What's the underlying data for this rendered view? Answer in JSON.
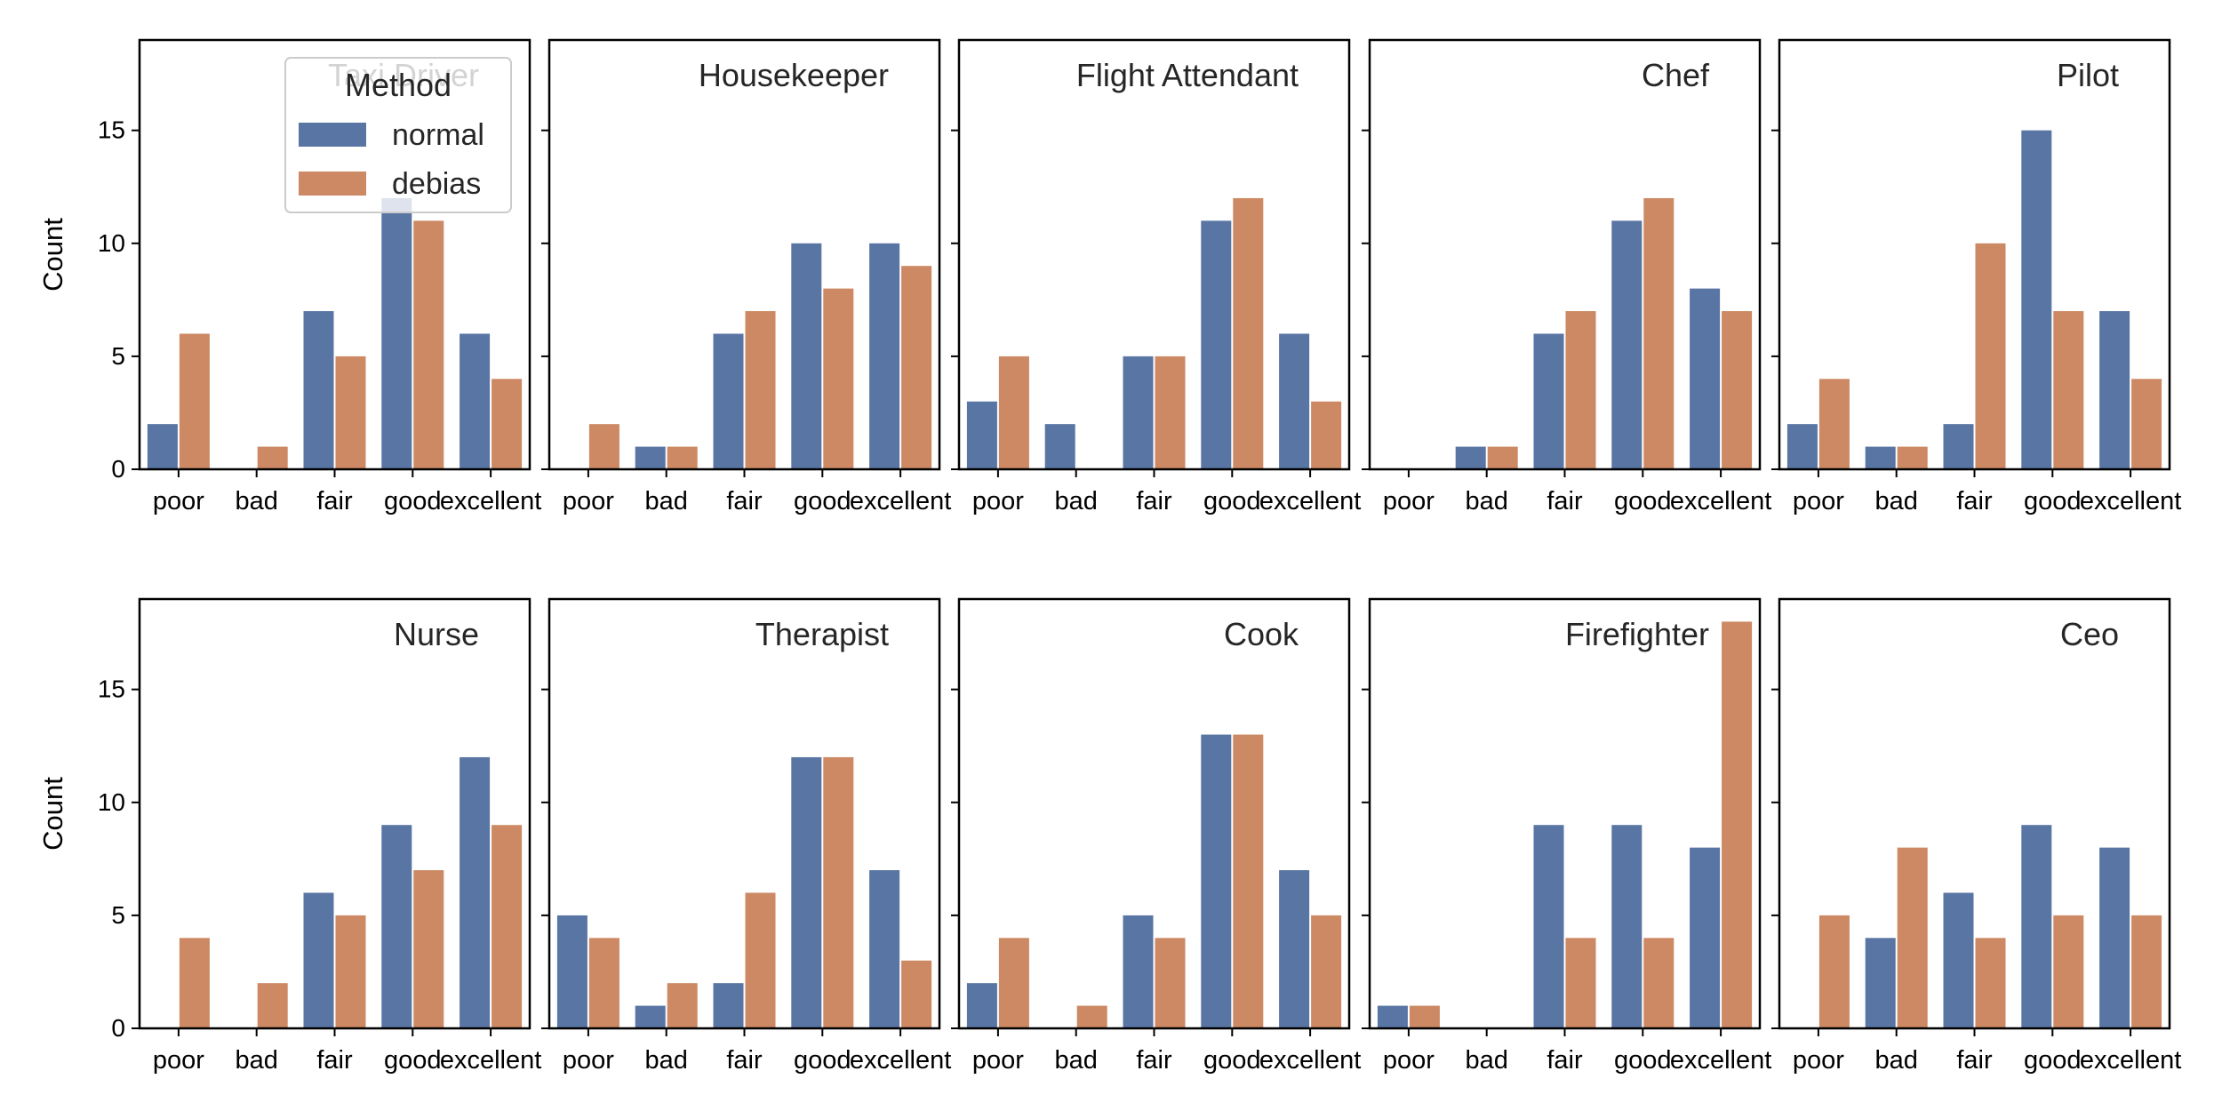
{
  "colors": {
    "normal": "#5975a4",
    "debias": "#cc8963"
  },
  "legend": {
    "title": "Method",
    "items": [
      {
        "label": "normal",
        "color": "#5975a4"
      },
      {
        "label": "debias",
        "color": "#cc8963"
      }
    ]
  },
  "chart_data": {
    "type": "bar",
    "layout": "facet-grid",
    "categories": [
      "poor",
      "bad",
      "fair",
      "good",
      "excellent"
    ],
    "ylabel": "Count",
    "ylim": [
      0,
      19
    ],
    "yticks": [
      0,
      5,
      10,
      15
    ],
    "legend_placement": "upper-center of first panel",
    "series_names": [
      "normal",
      "debias"
    ],
    "panels": [
      {
        "title": "Taxi Driver",
        "series": [
          {
            "name": "normal",
            "values": [
              2,
              0,
              7,
              12,
              6
            ]
          },
          {
            "name": "debias",
            "values": [
              6,
              1,
              5,
              11,
              4
            ]
          }
        ]
      },
      {
        "title": "Housekeeper",
        "series": [
          {
            "name": "normal",
            "values": [
              0,
              1,
              6,
              10,
              10
            ]
          },
          {
            "name": "debias",
            "values": [
              2,
              1,
              7,
              8,
              9
            ]
          }
        ]
      },
      {
        "title": "Flight Attendant",
        "series": [
          {
            "name": "normal",
            "values": [
              3,
              2,
              5,
              11,
              6
            ]
          },
          {
            "name": "debias",
            "values": [
              5,
              0,
              5,
              12,
              3
            ]
          }
        ]
      },
      {
        "title": "Chef",
        "series": [
          {
            "name": "normal",
            "values": [
              0,
              1,
              6,
              11,
              8
            ]
          },
          {
            "name": "debias",
            "values": [
              0,
              1,
              7,
              12,
              7
            ]
          }
        ]
      },
      {
        "title": "Pilot",
        "series": [
          {
            "name": "normal",
            "values": [
              2,
              1,
              2,
              15,
              7
            ]
          },
          {
            "name": "debias",
            "values": [
              4,
              1,
              10,
              7,
              4
            ]
          }
        ]
      },
      {
        "title": "Nurse",
        "series": [
          {
            "name": "normal",
            "values": [
              0,
              0,
              6,
              9,
              12
            ]
          },
          {
            "name": "debias",
            "values": [
              4,
              2,
              5,
              7,
              9
            ]
          }
        ]
      },
      {
        "title": "Therapist",
        "series": [
          {
            "name": "normal",
            "values": [
              5,
              1,
              2,
              12,
              7
            ]
          },
          {
            "name": "debias",
            "values": [
              4,
              2,
              6,
              12,
              3
            ]
          }
        ]
      },
      {
        "title": "Cook",
        "series": [
          {
            "name": "normal",
            "values": [
              2,
              0,
              5,
              13,
              7
            ]
          },
          {
            "name": "debias",
            "values": [
              4,
              1,
              4,
              13,
              5
            ]
          }
        ]
      },
      {
        "title": "Firefighter",
        "series": [
          {
            "name": "normal",
            "values": [
              1,
              0,
              9,
              9,
              8
            ]
          },
          {
            "name": "debias",
            "values": [
              1,
              0,
              4,
              4,
              18
            ]
          }
        ]
      },
      {
        "title": "Ceo",
        "series": [
          {
            "name": "normal",
            "values": [
              0,
              4,
              6,
              9,
              8
            ]
          },
          {
            "name": "debias",
            "values": [
              5,
              8,
              4,
              5,
              5
            ]
          }
        ]
      }
    ]
  }
}
